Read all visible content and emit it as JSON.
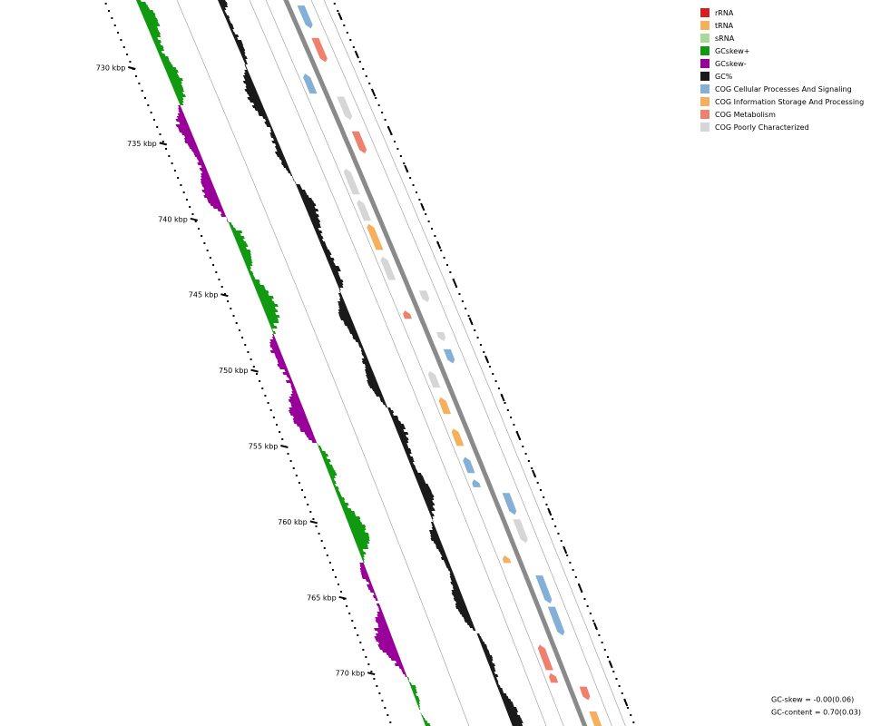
{
  "legend": {
    "items": [
      {
        "label": "rRNA",
        "color": "#d62020"
      },
      {
        "label": "tRNA",
        "color": "#f5b05e"
      },
      {
        "label": "sRNA",
        "color": "#a6d99a"
      },
      {
        "label": "GCskew+",
        "color": "#129912"
      },
      {
        "label": "GCskew-",
        "color": "#990099"
      },
      {
        "label": "GC%",
        "color": "#1a1a1a"
      },
      {
        "label": "COG Cellular Processes And Signaling",
        "color": "#84afd6"
      },
      {
        "label": "COG Information Storage And Processing",
        "color": "#f5b05e"
      },
      {
        "label": "COG Metabolism",
        "color": "#f0806e"
      },
      {
        "label": "COG Poorly Characterized",
        "color": "#d6d6d6"
      }
    ]
  },
  "ruler": {
    "labels": [
      "730 kbp",
      "735 kbp",
      "740 kbp",
      "745 kbp",
      "750 kbp",
      "755 kbp",
      "760 kbp",
      "765 kbp",
      "770 kbp"
    ]
  },
  "footer": {
    "gc_skew": "GC-skew = -0.00(0.06)",
    "gc_content": "GC-content = 0.70(0.03)"
  }
}
